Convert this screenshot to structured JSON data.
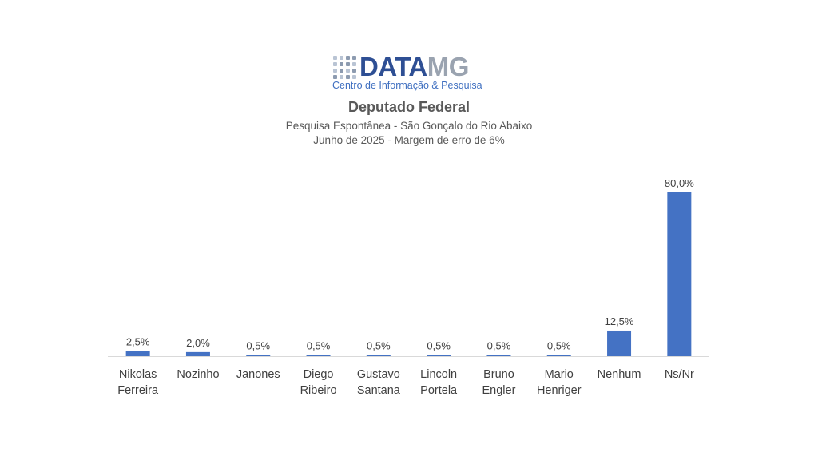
{
  "logo": {
    "brand_primary": "DATA",
    "brand_secondary": "MG",
    "tagline": "Centro de Informação & Pesquisa",
    "primary_color": "#2e4f94",
    "secondary_color": "#9aa3b0",
    "tagline_color": "#3f6fc0"
  },
  "chart_data": {
    "type": "bar",
    "title": "Deputado Federal",
    "subtitle_lines": [
      "Pesquisa Espontânea - São Gonçalo do Rio Abaixo",
      "Junho de 2025 - Margem de erro de 6%"
    ],
    "categories": [
      [
        "Nikolas",
        "Ferreira"
      ],
      [
        "Nozinho"
      ],
      [
        "Janones"
      ],
      [
        "Diego",
        "Ribeiro"
      ],
      [
        "Gustavo",
        "Santana"
      ],
      [
        "Lincoln",
        "Portela"
      ],
      [
        "Bruno",
        "Engler"
      ],
      [
        "Mario",
        "Henriger"
      ],
      [
        "Nenhum"
      ],
      [
        "Ns/Nr"
      ]
    ],
    "values": [
      2.5,
      2.0,
      0.5,
      0.5,
      0.5,
      0.5,
      0.5,
      0.5,
      12.5,
      80.0
    ],
    "data_labels": [
      "2,5%",
      "2,0%",
      "0,5%",
      "0,5%",
      "0,5%",
      "0,5%",
      "0,5%",
      "0,5%",
      "12,5%",
      "80,0%"
    ],
    "ylim": [
      0,
      80
    ],
    "bar_color": "#4472c4",
    "grid": false,
    "legend": "none"
  }
}
